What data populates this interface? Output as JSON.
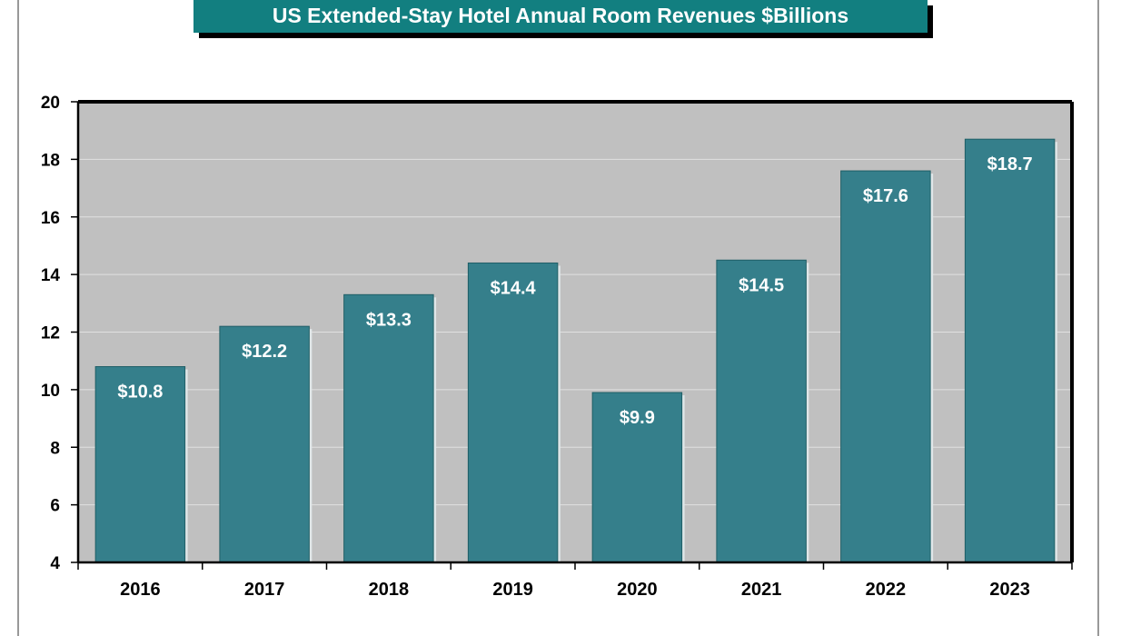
{
  "chart_data": {
    "type": "bar",
    "title": "US Extended-Stay Hotel Annual Room Revenues $Billions",
    "xlabel": "",
    "ylabel": "",
    "categories": [
      "2016",
      "2017",
      "2018",
      "2019",
      "2020",
      "2021",
      "2022",
      "2023"
    ],
    "values": [
      10.8,
      12.2,
      13.3,
      14.4,
      9.9,
      14.5,
      17.6,
      18.7
    ],
    "data_labels": [
      "$10.8",
      "$12.2",
      "$13.3",
      "$14.4",
      "$9.9",
      "$14.5",
      "$17.6",
      "$18.7"
    ],
    "ylim": [
      4,
      20
    ],
    "yticks": [
      4,
      6,
      8,
      10,
      12,
      14,
      16,
      18,
      20
    ],
    "grid": true,
    "colors": {
      "bar": "#357f8b",
      "plot_bg": "#c0c0c0",
      "title_bg": "#127f80",
      "grid": "#e0e0e0"
    }
  }
}
